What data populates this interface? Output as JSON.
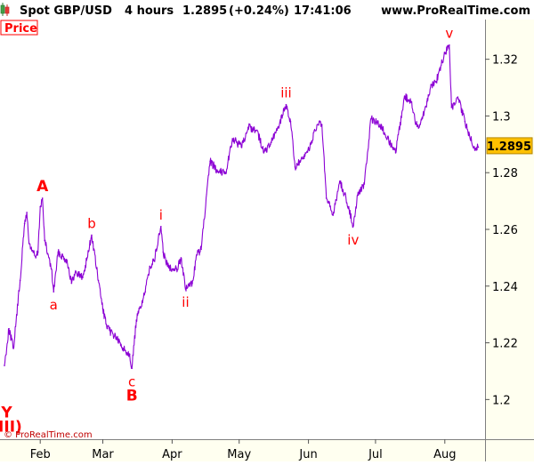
{
  "header": {
    "instrument": "Spot GBP/USD",
    "timeframe": "4 hours",
    "price": "1.2895",
    "change": "(+0.24%)",
    "time": "17:41:06",
    "site": "www.ProRealTime.com"
  },
  "panel_label": "Price",
  "copyright": "© ProRealTime.com",
  "last_price_tag": "1.2895",
  "colors": {
    "background": "#ffffff",
    "axis_background": "#fffff0",
    "price_line": "#8b00d4",
    "wave_labels": "#ff0000",
    "tag_fill": "#ffc000",
    "grid": "#cfcfcf"
  },
  "chart_data": {
    "type": "line",
    "series": [
      {
        "points": [
          [
            "2017-01-16",
            1.212
          ],
          [
            "2017-01-18",
            1.225
          ],
          [
            "2017-01-20",
            1.218
          ],
          [
            "2017-01-23",
            1.242
          ],
          [
            "2017-01-25",
            1.262
          ],
          [
            "2017-01-26",
            1.266
          ],
          [
            "2017-01-27",
            1.255
          ],
          [
            "2017-01-30",
            1.25
          ],
          [
            "2017-01-31",
            1.252
          ],
          [
            "2017-02-01",
            1.268
          ],
          [
            "2017-02-02",
            1.271
          ],
          [
            "2017-02-03",
            1.256
          ],
          [
            "2017-02-06",
            1.246
          ],
          [
            "2017-02-07",
            1.238
          ],
          [
            "2017-02-09",
            1.252
          ],
          [
            "2017-02-13",
            1.249
          ],
          [
            "2017-02-15",
            1.241
          ],
          [
            "2017-02-17",
            1.245
          ],
          [
            "2017-02-20",
            1.243
          ],
          [
            "2017-02-22",
            1.25
          ],
          [
            "2017-02-24",
            1.258
          ],
          [
            "2017-02-27",
            1.242
          ],
          [
            "2017-03-01",
            1.232
          ],
          [
            "2017-03-03",
            1.225
          ],
          [
            "2017-03-07",
            1.222
          ],
          [
            "2017-03-09",
            1.219
          ],
          [
            "2017-03-13",
            1.216
          ],
          [
            "2017-03-14",
            1.211
          ],
          [
            "2017-03-16",
            1.228
          ],
          [
            "2017-03-20",
            1.238
          ],
          [
            "2017-03-22",
            1.247
          ],
          [
            "2017-03-24",
            1.249
          ],
          [
            "2017-03-27",
            1.261
          ],
          [
            "2017-03-28",
            1.252
          ],
          [
            "2017-03-30",
            1.247
          ],
          [
            "2017-04-03",
            1.246
          ],
          [
            "2017-04-05",
            1.25
          ],
          [
            "2017-04-07",
            1.239
          ],
          [
            "2017-04-10",
            1.241
          ],
          [
            "2017-04-12",
            1.251
          ],
          [
            "2017-04-14",
            1.253
          ],
          [
            "2017-04-18",
            1.284
          ],
          [
            "2017-04-21",
            1.281
          ],
          [
            "2017-04-25",
            1.28
          ],
          [
            "2017-04-28",
            1.292
          ],
          [
            "2017-05-02",
            1.289
          ],
          [
            "2017-05-05",
            1.296
          ],
          [
            "2017-05-09",
            1.295
          ],
          [
            "2017-05-12",
            1.287
          ],
          [
            "2017-05-15",
            1.29
          ],
          [
            "2017-05-18",
            1.295
          ],
          [
            "2017-05-22",
            1.304
          ],
          [
            "2017-05-24",
            1.298
          ],
          [
            "2017-05-26",
            1.282
          ],
          [
            "2017-05-30",
            1.285
          ],
          [
            "2017-06-02",
            1.29
          ],
          [
            "2017-06-05",
            1.297
          ],
          [
            "2017-06-07",
            1.297
          ],
          [
            "2017-06-09",
            1.271
          ],
          [
            "2017-06-12",
            1.265
          ],
          [
            "2017-06-15",
            1.277
          ],
          [
            "2017-06-19",
            1.268
          ],
          [
            "2017-06-21",
            1.261
          ],
          [
            "2017-06-23",
            1.272
          ],
          [
            "2017-06-26",
            1.276
          ],
          [
            "2017-06-29",
            1.299
          ],
          [
            "2017-07-03",
            1.297
          ],
          [
            "2017-07-05",
            1.294
          ],
          [
            "2017-07-10",
            1.287
          ],
          [
            "2017-07-14",
            1.307
          ],
          [
            "2017-07-17",
            1.305
          ],
          [
            "2017-07-19",
            1.297
          ],
          [
            "2017-07-21",
            1.297
          ],
          [
            "2017-07-24",
            1.305
          ],
          [
            "2017-07-26",
            1.311
          ],
          [
            "2017-07-28",
            1.312
          ],
          [
            "2017-08-01",
            1.322
          ],
          [
            "2017-08-03",
            1.325
          ],
          [
            "2017-08-04",
            1.303
          ],
          [
            "2017-08-07",
            1.306
          ],
          [
            "2017-08-10",
            1.298
          ],
          [
            "2017-08-14",
            1.289
          ],
          [
            "2017-08-16",
            1.289
          ]
        ]
      }
    ],
    "x_axis": {
      "ticks": [
        {
          "label": "Feb",
          "date": "2017-02-01"
        },
        {
          "label": "Mar",
          "date": "2017-03-01"
        },
        {
          "label": "Apr",
          "date": "2017-04-01"
        },
        {
          "label": "May",
          "date": "2017-05-01"
        },
        {
          "label": "Jun",
          "date": "2017-06-01"
        },
        {
          "label": "Jul",
          "date": "2017-07-01"
        },
        {
          "label": "Aug",
          "date": "2017-08-01"
        }
      ],
      "range": [
        "2017-01-16",
        "2017-08-16"
      ]
    },
    "y_axis": {
      "ticks": [
        1.2,
        1.22,
        1.24,
        1.26,
        1.28,
        1.3,
        1.32
      ],
      "tick_labels": [
        "1.2",
        "1.22",
        "1.24",
        "1.26",
        "1.28",
        "1.3",
        "1.32"
      ],
      "range": [
        1.186,
        1.334
      ],
      "position": "right"
    },
    "grid": false,
    "annotations": [
      {
        "text": "Y",
        "date": "2017-01-17",
        "value": 1.2,
        "placement": "below",
        "bold": true
      },
      {
        "text": "(III)",
        "date": "2017-01-17",
        "value": 1.2,
        "placement": "below-2",
        "bold": true
      },
      {
        "text": "A",
        "date": "2017-02-02",
        "value": 1.271,
        "placement": "above",
        "bold": true
      },
      {
        "text": "a",
        "date": "2017-02-07",
        "value": 1.238,
        "placement": "below",
        "bold": false
      },
      {
        "text": "b",
        "date": "2017-02-24",
        "value": 1.258,
        "placement": "above",
        "bold": false
      },
      {
        "text": "c",
        "date": "2017-03-14",
        "value": 1.211,
        "placement": "below",
        "bold": false
      },
      {
        "text": "B",
        "date": "2017-03-14",
        "value": 1.211,
        "placement": "below-2",
        "bold": true
      },
      {
        "text": "i",
        "date": "2017-03-27",
        "value": 1.261,
        "placement": "above",
        "bold": false
      },
      {
        "text": "ii",
        "date": "2017-04-07",
        "value": 1.239,
        "placement": "below",
        "bold": false
      },
      {
        "text": "iii",
        "date": "2017-05-22",
        "value": 1.304,
        "placement": "above",
        "bold": false
      },
      {
        "text": "iv",
        "date": "2017-06-21",
        "value": 1.261,
        "placement": "below",
        "bold": false
      },
      {
        "text": "v",
        "date": "2017-08-03",
        "value": 1.325,
        "placement": "above",
        "bold": false
      }
    ]
  }
}
